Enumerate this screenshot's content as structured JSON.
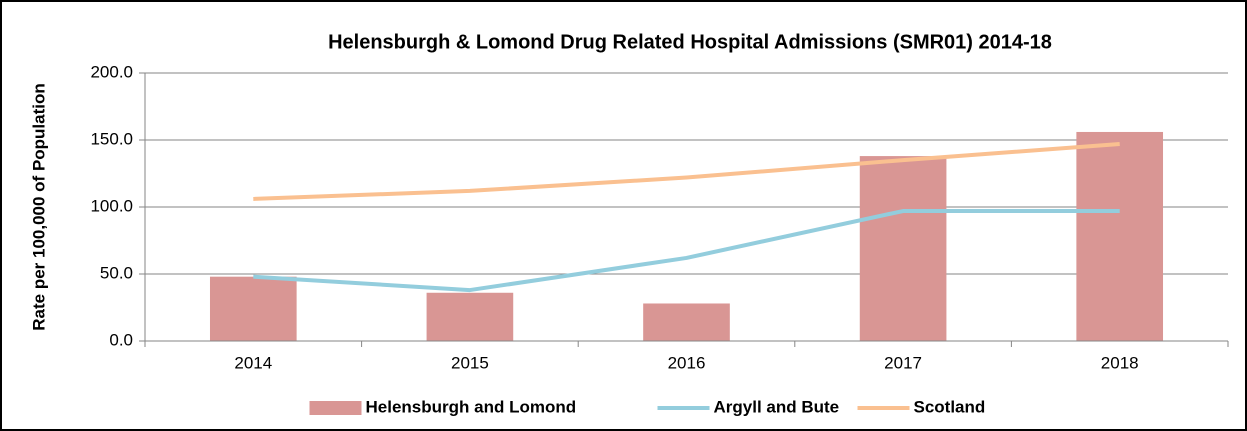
{
  "chart_data": {
    "type": "bar",
    "title": "Helensburgh & Lomond Drug Related Hospital Admissions (SMR01) 2014-18",
    "y_label": "Rate per 100,000 of Population",
    "categories": [
      "2014",
      "2015",
      "2016",
      "2017",
      "2018"
    ],
    "series": [
      {
        "name": "Helensburgh and Lomond",
        "type": "bar",
        "color": "#d99694",
        "values": [
          48,
          36,
          28,
          138,
          156
        ]
      },
      {
        "name": "Argyll and Bute",
        "type": "line",
        "color": "#93cddd",
        "values": [
          48,
          38,
          62,
          97,
          97
        ]
      },
      {
        "name": "Scotland",
        "type": "line",
        "color": "#fac090",
        "values": [
          106,
          112,
          122,
          135,
          147
        ]
      }
    ],
    "ylim": [
      0,
      200
    ],
    "yticks": [
      {
        "value": 0,
        "label": "0.0"
      },
      {
        "value": 50,
        "label": "50.0"
      },
      {
        "value": 100,
        "label": "100.0"
      },
      {
        "value": 150,
        "label": "150.0"
      },
      {
        "value": 200,
        "label": "200.0"
      }
    ],
    "grid": true,
    "legend": "bottom"
  }
}
